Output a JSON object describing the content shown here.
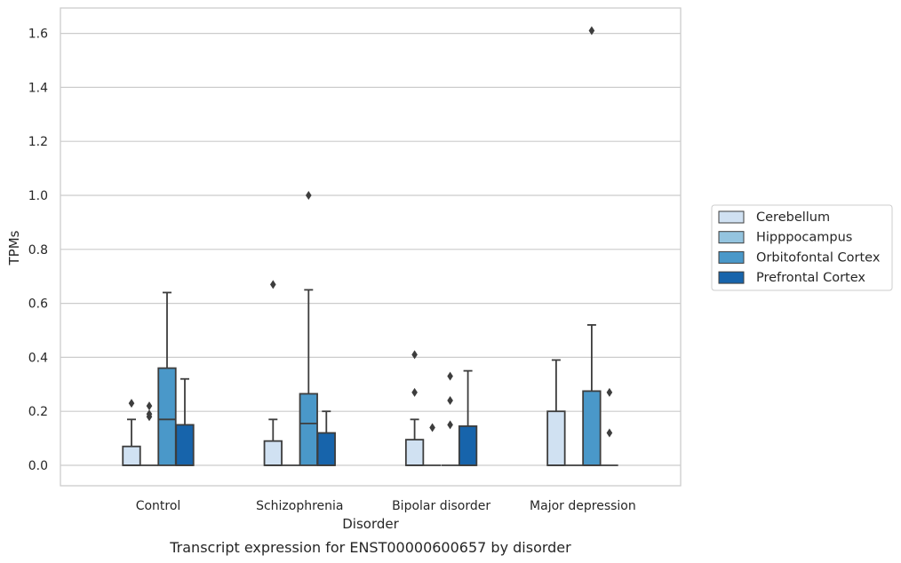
{
  "chart_data": {
    "type": "box",
    "title": "Transcript expression for ENST00000600657 by disorder",
    "xlabel": "Disorder",
    "ylabel": "TPMs",
    "ylim": [
      -0.08,
      1.69
    ],
    "yticks": [
      "0.0",
      "0.2",
      "0.4",
      "0.6",
      "0.8",
      "1.0",
      "1.2",
      "1.4",
      "1.6"
    ],
    "grid": true,
    "legend_position": "right",
    "categories": [
      "Control",
      "Schizophrenia",
      "Bipolar disorder",
      "Major depression"
    ],
    "series": [
      {
        "name": "Cerebellum",
        "color": "#d0e1f2",
        "boxes": [
          {
            "min": 0,
            "q1": 0,
            "median": 0,
            "q3": 0.07,
            "max": 0.17,
            "outliers": [
              0.23
            ]
          },
          {
            "min": 0,
            "q1": 0,
            "median": 0,
            "q3": 0.09,
            "max": 0.17,
            "outliers": [
              0.67
            ]
          },
          {
            "min": 0,
            "q1": 0,
            "median": 0,
            "q3": 0.095,
            "max": 0.17,
            "outliers": [
              0.27,
              0.41
            ]
          },
          {
            "min": 0,
            "q1": 0,
            "median": 0,
            "q3": 0.2,
            "max": 0.39,
            "outliers": []
          }
        ]
      },
      {
        "name": "Hipppocampus",
        "color": "#94c4df",
        "boxes": [
          {
            "min": 0,
            "q1": 0,
            "median": 0,
            "q3": 0,
            "max": 0,
            "outliers": [
              0.18,
              0.19,
              0.22
            ]
          },
          {
            "min": 0,
            "q1": 0,
            "median": 0,
            "q3": 0,
            "max": 0,
            "outliers": []
          },
          {
            "min": 0,
            "q1": 0,
            "median": 0,
            "q3": 0,
            "max": 0,
            "outliers": [
              0.14
            ]
          },
          {
            "min": 0,
            "q1": 0,
            "median": 0,
            "q3": 0,
            "max": 0,
            "outliers": []
          }
        ]
      },
      {
        "name": "Orbitofontal Cortex",
        "color": "#4a98c9",
        "boxes": [
          {
            "min": 0,
            "q1": 0,
            "median": 0.17,
            "q3": 0.36,
            "max": 0.64,
            "outliers": []
          },
          {
            "min": 0,
            "q1": 0,
            "median": 0.155,
            "q3": 0.265,
            "max": 0.65,
            "outliers": [
              1.0
            ]
          },
          {
            "min": 0,
            "q1": 0,
            "median": 0,
            "q3": 0,
            "max": 0,
            "outliers": [
              0.15,
              0.24,
              0.33
            ]
          },
          {
            "min": 0,
            "q1": 0,
            "median": 0,
            "q3": 0.275,
            "max": 0.52,
            "outliers": [
              1.61
            ]
          }
        ]
      },
      {
        "name": "Prefrontal Cortex",
        "color": "#1764ab",
        "boxes": [
          {
            "min": 0,
            "q1": 0,
            "median": 0,
            "q3": 0.15,
            "max": 0.32,
            "outliers": []
          },
          {
            "min": 0,
            "q1": 0,
            "median": 0,
            "q3": 0.12,
            "max": 0.2,
            "outliers": []
          },
          {
            "min": 0,
            "q1": 0,
            "median": 0,
            "q3": 0.145,
            "max": 0.35,
            "outliers": []
          },
          {
            "min": 0,
            "q1": 0,
            "median": 0,
            "q3": 0,
            "max": 0,
            "outliers": [
              0.12,
              0.27
            ]
          }
        ]
      }
    ]
  }
}
